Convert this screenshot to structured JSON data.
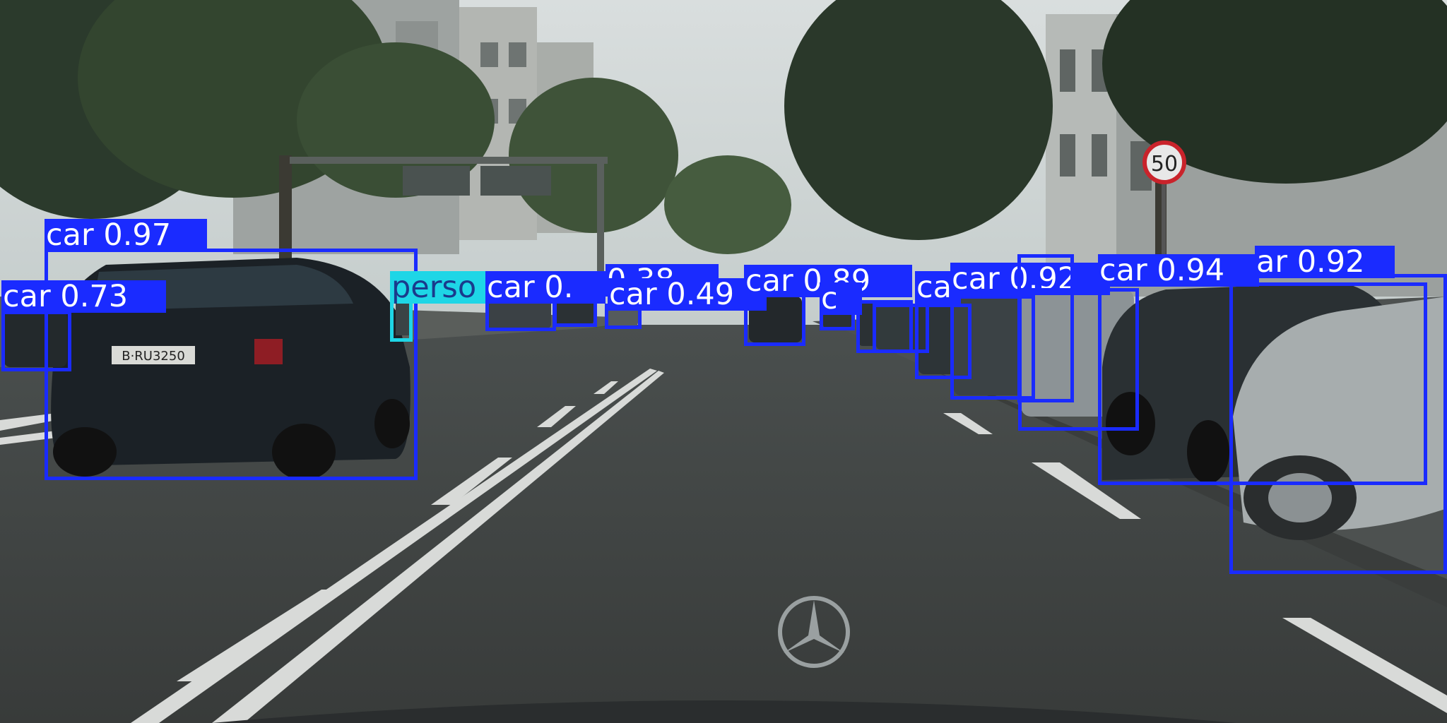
{
  "image": {
    "description_icon": "street-scene-photo",
    "colors": {
      "car": "#1a2bff",
      "person": "#1ed6e6",
      "label_text": "#ffffff",
      "person_label_text": "#1a3a8c"
    },
    "sign_text": "50",
    "plate_text": "B·RU3250"
  },
  "detections": [
    {
      "label": "car 0.97",
      "cls": "car"
    },
    {
      "label": "car 0.73",
      "cls": "car"
    },
    {
      "label": "perso",
      "cls": "person"
    },
    {
      "label": "car 0.",
      "cls": "car"
    },
    {
      "label": "0.38",
      "cls": "car"
    },
    {
      "label": "car 0.49",
      "cls": "car"
    },
    {
      "label": "car 0.89",
      "cls": "car"
    },
    {
      "label": "c",
      "cls": "car"
    },
    {
      "label": "ca",
      "cls": "car"
    },
    {
      "label": "car 0.92",
      "cls": "car"
    },
    {
      "label": "car 0.94",
      "cls": "car"
    },
    {
      "label": "ar 0.92",
      "cls": "car"
    }
  ]
}
